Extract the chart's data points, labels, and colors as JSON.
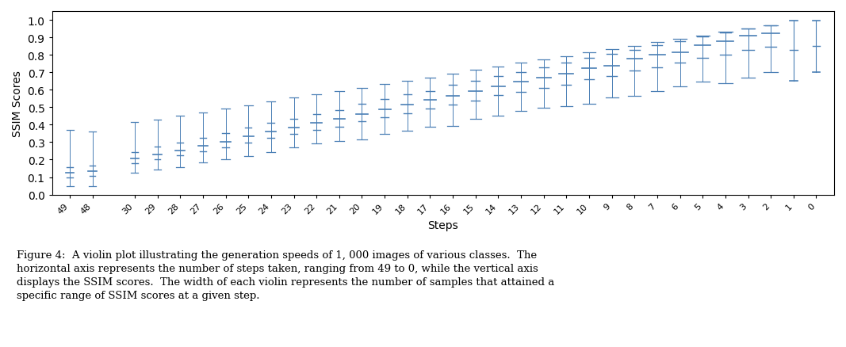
{
  "xlabel": "Steps",
  "ylabel": "SSIM Scores",
  "ylim": [
    0.0,
    1.05
  ],
  "yticks": [
    0.0,
    0.1,
    0.2,
    0.3,
    0.4,
    0.5,
    0.6,
    0.7,
    0.8,
    0.9,
    1.0
  ],
  "violin_color": "#a8c8e8",
  "violin_edge_color": "#5599cc",
  "whisker_color": "#4a7fb5",
  "steps": [
    49,
    48,
    30,
    29,
    28,
    27,
    26,
    25,
    24,
    23,
    22,
    21,
    20,
    19,
    18,
    17,
    16,
    15,
    14,
    13,
    12,
    11,
    10,
    9,
    8,
    7,
    6,
    5,
    4,
    3,
    2,
    1,
    0
  ],
  "caption": "Figure 4:  A violin plot illustrating the generation speeds of 1, 000 images of various classes.  The\nhorizontal axis represents the number of steps taken, ranging from 49 to 0, while the vertical axis\ndisplays the SSIM scores.  The width of each violin represents the number of samples that attained a\nspecific range of SSIM scores at a given step.",
  "figsize": [
    10.67,
    4.39
  ],
  "dpi": 100
}
